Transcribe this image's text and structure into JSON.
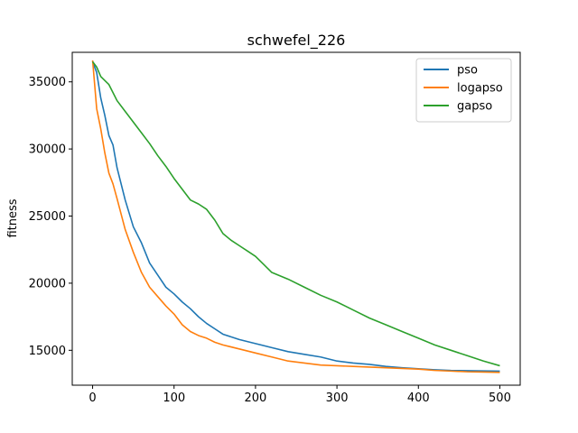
{
  "chart_data": {
    "type": "line",
    "title": "schwefel_226",
    "xlabel": "",
    "ylabel": "fitness",
    "xlim": [
      -25,
      525
    ],
    "ylim": [
      12400,
      37200
    ],
    "xticks": [
      0,
      100,
      200,
      300,
      400,
      500
    ],
    "yticks": [
      15000,
      20000,
      25000,
      30000,
      35000
    ],
    "grid": false,
    "legend_position": "top-right",
    "series": [
      {
        "name": "pso",
        "color": "#1f77b4",
        "x": [
          0,
          5,
          10,
          15,
          20,
          25,
          30,
          40,
          50,
          60,
          70,
          80,
          90,
          100,
          110,
          120,
          130,
          140,
          150,
          160,
          180,
          200,
          220,
          240,
          260,
          280,
          300,
          320,
          340,
          360,
          380,
          400,
          420,
          440,
          460,
          480,
          500
        ],
        "y": [
          36500,
          35700,
          33800,
          32500,
          31000,
          30300,
          28600,
          26200,
          24200,
          23000,
          21500,
          20600,
          19700,
          19200,
          18600,
          18100,
          17500,
          17000,
          16600,
          16200,
          15800,
          15500,
          15200,
          14900,
          14700,
          14500,
          14200,
          14050,
          13950,
          13800,
          13700,
          13620,
          13550,
          13500,
          13480,
          13460,
          13450
        ]
      },
      {
        "name": "logapso",
        "color": "#ff7f0e",
        "x": [
          0,
          5,
          10,
          15,
          20,
          25,
          30,
          40,
          50,
          60,
          70,
          80,
          90,
          100,
          110,
          120,
          130,
          140,
          150,
          160,
          180,
          200,
          220,
          240,
          260,
          280,
          300,
          320,
          340,
          360,
          380,
          400,
          420,
          440,
          460,
          480,
          500
        ],
        "y": [
          36600,
          33000,
          31500,
          29700,
          28200,
          27400,
          26300,
          24000,
          22300,
          20800,
          19700,
          19000,
          18300,
          17700,
          16900,
          16400,
          16100,
          15900,
          15600,
          15400,
          15100,
          14800,
          14500,
          14200,
          14050,
          13900,
          13850,
          13800,
          13750,
          13700,
          13650,
          13600,
          13500,
          13450,
          13400,
          13380,
          13350
        ]
      },
      {
        "name": "gapso",
        "color": "#2ca02c",
        "x": [
          0,
          5,
          10,
          20,
          30,
          40,
          50,
          60,
          70,
          80,
          90,
          100,
          110,
          120,
          130,
          140,
          150,
          160,
          170,
          180,
          190,
          200,
          210,
          220,
          240,
          260,
          280,
          300,
          320,
          340,
          360,
          380,
          400,
          420,
          440,
          460,
          480,
          500
        ],
        "y": [
          36500,
          36100,
          35400,
          34800,
          33600,
          32800,
          32000,
          31200,
          30400,
          29500,
          28700,
          27800,
          27000,
          26200,
          25900,
          25500,
          24700,
          23700,
          23200,
          22800,
          22400,
          22000,
          21400,
          20800,
          20300,
          19700,
          19100,
          18600,
          18000,
          17400,
          16900,
          16400,
          15900,
          15400,
          15000,
          14600,
          14200,
          13850
        ]
      }
    ]
  }
}
